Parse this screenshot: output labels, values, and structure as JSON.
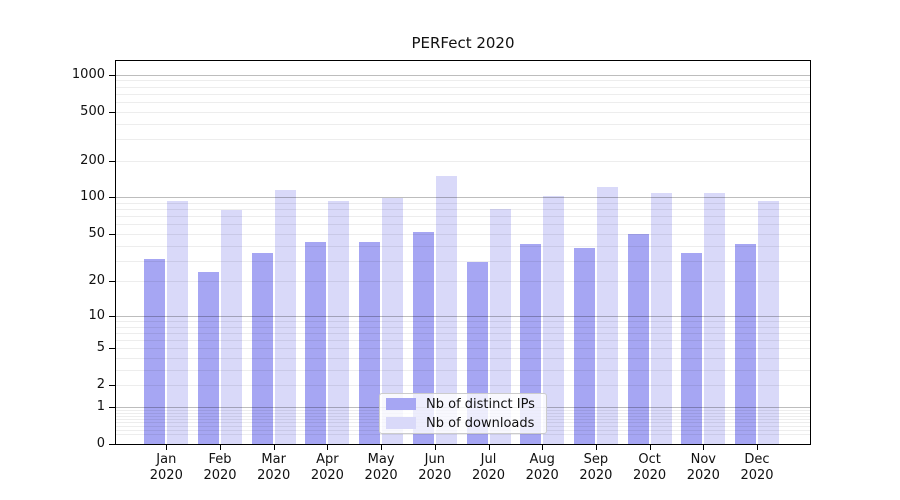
{
  "chart_data": {
    "type": "bar",
    "title": "PERFect 2020",
    "categories": [
      "Jan",
      "Feb",
      "Mar",
      "Apr",
      "May",
      "Jun",
      "Jul",
      "Aug",
      "Sep",
      "Oct",
      "Nov",
      "Dec"
    ],
    "year_label": "2020",
    "series": [
      {
        "name": "Nb of distinct IPs",
        "color": "#a6a6f3",
        "values": [
          31,
          24,
          35,
          43,
          43,
          52,
          29,
          41,
          38,
          50,
          35,
          41
        ]
      },
      {
        "name": "Nb of downloads",
        "color": "#d9d9f9",
        "values": [
          93,
          79,
          114,
          93,
          98,
          151,
          81,
          102,
          121,
          108,
          108,
          93
        ]
      }
    ],
    "yscale": "log1p",
    "ylim": [
      0,
      1320
    ],
    "yticks": [
      "1000",
      "500",
      "200",
      "100",
      "50",
      "20",
      "10",
      "5",
      "2",
      "1",
      "0"
    ],
    "grid": true,
    "legend_position": "lower-center-inside"
  },
  "colors": {
    "bar_distinct_ips": "#a6a6f3",
    "bar_downloads": "#d9d9f9",
    "grid_major": "rgba(0,0,0,0.26)",
    "grid_minor": "rgba(0,0,0,0.07)",
    "spine": "#000000",
    "tick": "#000000",
    "text": "#111111",
    "legend_border": "#cccccc"
  }
}
